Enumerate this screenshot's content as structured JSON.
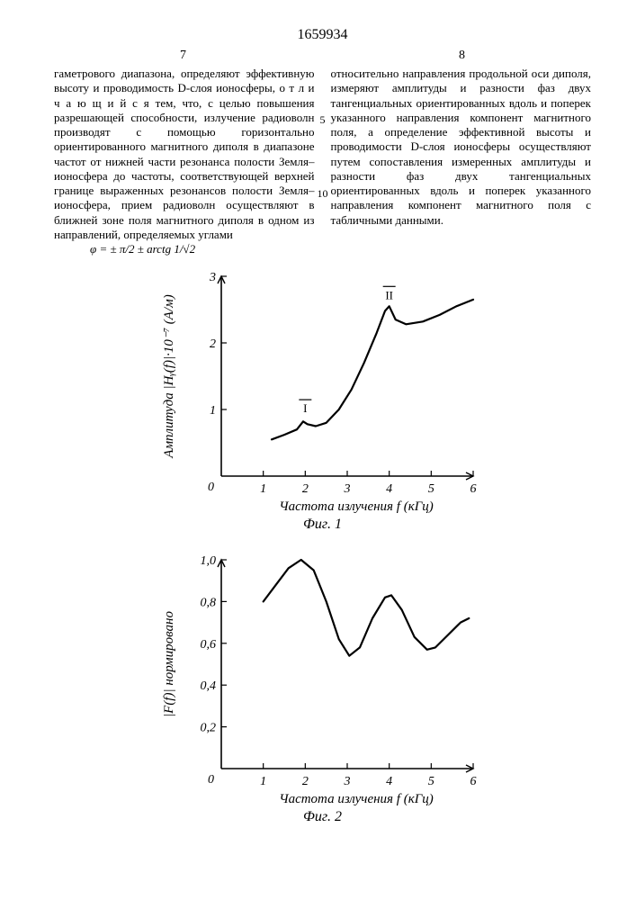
{
  "patent_number": "1659934",
  "col_left_num": "7",
  "col_right_num": "8",
  "rownum_5": "5",
  "rownum_10": "10",
  "left_text": "гаметрового диапазона, определяют эффективную высоту и проводимость D-слоя ионосферы, о т л и ч а ю щ и й с я тем, что, с целью повышения разрешающей способности, излучение радиоволн производят с помощью горизонтально ориентированного магнитного диполя в диапазоне частот от нижней части резонанса полости Земля–ионосфера до частоты, соответствующей верхней границе выраженных резонансов полости Земля–ионосфера, прием радиоволн осуществляют в ближней зоне поля магнитного диполя в одном из направлений, определяемых углами",
  "formula_text": "φ = ± π/2 ± arctg 1/√2",
  "right_text": "относительно направления продольной оси диполя, измеряют амплитуды и разности фаз двух тангенциальных ориентированных вдоль и поперек указанного направления компонент магнитного поля, а определение эффективной высоты и проводимости D-слоя ионосферы осуществляют путем сопоставления измеренных амплитуды и разности фаз двух тангенциальных ориентированных вдоль и поперек указанного направления компонент магнитного поля с табличными данными.",
  "fig1": {
    "type": "line",
    "caption": "Фиг. 1",
    "xlabel": "Частота излучения f (кГц)",
    "ylabel": "Амплитуда |Hᵧ(f)|·10⁻⁷ (А/м)",
    "xlim": [
      0,
      6
    ],
    "ylim": [
      0,
      3
    ],
    "xticks": [
      0,
      1,
      2,
      3,
      4,
      5,
      6
    ],
    "yticks": [
      0,
      1,
      2,
      3
    ],
    "line_color": "#000",
    "line_width": 2.2,
    "background": "#ffffff",
    "markers": [
      {
        "label": "I",
        "x": 2.0,
        "y": 0.85
      },
      {
        "label": "II",
        "x": 4.0,
        "y": 2.55
      }
    ],
    "points": [
      [
        1.2,
        0.55
      ],
      [
        1.5,
        0.62
      ],
      [
        1.8,
        0.7
      ],
      [
        1.95,
        0.82
      ],
      [
        2.05,
        0.78
      ],
      [
        2.25,
        0.75
      ],
      [
        2.5,
        0.8
      ],
      [
        2.8,
        1.0
      ],
      [
        3.1,
        1.3
      ],
      [
        3.4,
        1.7
      ],
      [
        3.7,
        2.15
      ],
      [
        3.9,
        2.48
      ],
      [
        4.0,
        2.55
      ],
      [
        4.15,
        2.35
      ],
      [
        4.4,
        2.28
      ],
      [
        4.8,
        2.32
      ],
      [
        5.2,
        2.42
      ],
      [
        5.6,
        2.55
      ],
      [
        6.0,
        2.65
      ]
    ]
  },
  "fig2": {
    "type": "line",
    "caption": "Фиг. 2",
    "xlabel": "Частота излучения f (кГц)",
    "ylabel": "|F(f)| нормировано",
    "xlim": [
      0,
      6
    ],
    "ylim": [
      0,
      1.0
    ],
    "xticks": [
      0,
      1,
      2,
      3,
      4,
      5,
      6
    ],
    "yticks": [
      0,
      0.2,
      0.4,
      0.6,
      0.8,
      1.0
    ],
    "ytick_labels": [
      "0",
      "0,2",
      "0,4",
      "0,6",
      "0,8",
      "1,0"
    ],
    "line_color": "#000",
    "line_width": 2.2,
    "background": "#ffffff",
    "points": [
      [
        1.0,
        0.8
      ],
      [
        1.3,
        0.88
      ],
      [
        1.6,
        0.96
      ],
      [
        1.9,
        1.0
      ],
      [
        2.2,
        0.95
      ],
      [
        2.5,
        0.8
      ],
      [
        2.8,
        0.62
      ],
      [
        3.05,
        0.54
      ],
      [
        3.3,
        0.58
      ],
      [
        3.6,
        0.72
      ],
      [
        3.9,
        0.82
      ],
      [
        4.05,
        0.83
      ],
      [
        4.3,
        0.76
      ],
      [
        4.6,
        0.63
      ],
      [
        4.9,
        0.57
      ],
      [
        5.1,
        0.58
      ],
      [
        5.4,
        0.64
      ],
      [
        5.7,
        0.7
      ],
      [
        5.9,
        0.72
      ]
    ]
  }
}
